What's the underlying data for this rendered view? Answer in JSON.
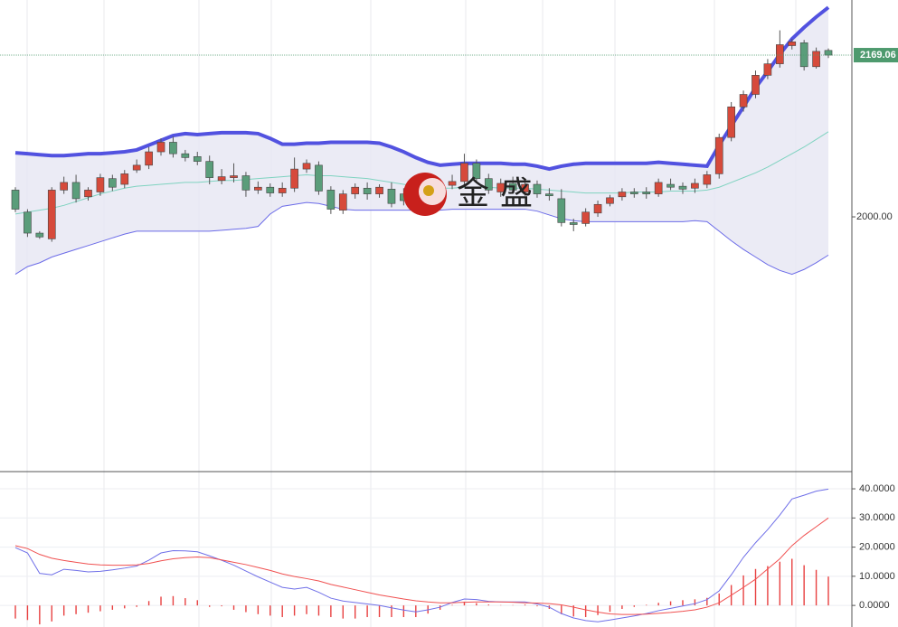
{
  "chart_data": [
    {
      "type": "candlestick",
      "up_color": "#d64a3b",
      "down_color": "#5a9d7a",
      "open": [
        2028,
        2005,
        1983,
        1977,
        2028,
        2036,
        2021,
        2026,
        2040,
        2034,
        2049,
        2054,
        2068,
        2078,
        2066,
        2063,
        2058,
        2038,
        2041,
        2043,
        2028,
        2031,
        2025,
        2030,
        2050,
        2054,
        2028,
        2007,
        2024,
        2030,
        2024,
        2029,
        2024,
        2018,
        2031,
        2027,
        2033,
        2037,
        2056,
        2040,
        2026,
        2035,
        2026,
        2034,
        2024,
        2019,
        1994,
        1993,
        2004,
        2014,
        2021,
        2026,
        2026,
        2024,
        2034,
        2032,
        2030,
        2034,
        2045,
        2083,
        2115,
        2128,
        2148,
        2160,
        2179,
        2182,
        2157,
        2174
      ],
      "high": [
        2031,
        2008,
        1985,
        2031,
        2042,
        2044,
        2031,
        2045,
        2044,
        2049,
        2060,
        2073,
        2082,
        2084,
        2070,
        2068,
        2064,
        2050,
        2056,
        2047,
        2037,
        2035,
        2036,
        2062,
        2060,
        2058,
        2032,
        2028,
        2035,
        2036,
        2034,
        2036,
        2030,
        2035,
        2036,
        2040,
        2044,
        2066,
        2060,
        2045,
        2040,
        2042,
        2038,
        2038,
        2030,
        2029,
        1998,
        2009,
        2017,
        2023,
        2030,
        2030,
        2031,
        2040,
        2040,
        2036,
        2040,
        2048,
        2087,
        2120,
        2132,
        2153,
        2165,
        2195,
        2186,
        2185,
        2177,
        2176
      ],
      "low": [
        2005,
        1979,
        1977,
        1974,
        2024,
        2015,
        2017,
        2022,
        2027,
        2030,
        2046,
        2050,
        2064,
        2062,
        2058,
        2054,
        2034,
        2034,
        2036,
        2021,
        2024,
        2021,
        2021,
        2026,
        2046,
        2023,
        2003,
        2003,
        2019,
        2018,
        2020,
        2010,
        2012,
        2014,
        2022,
        2023,
        2029,
        2033,
        2035,
        2024,
        2021,
        2024,
        2022,
        2020,
        2017,
        1990,
        1985,
        1990,
        2000,
        2011,
        2017,
        2020,
        2019,
        2021,
        2028,
        2024,
        2025,
        2030,
        2040,
        2079,
        2110,
        2124,
        2144,
        2156,
        2175,
        2153,
        2155,
        2166
      ],
      "close": [
        2008,
        1983,
        1979,
        2028,
        2036,
        2019,
        2028,
        2041,
        2031,
        2045,
        2054,
        2068,
        2078,
        2066,
        2062,
        2058,
        2041,
        2042,
        2043,
        2028,
        2031,
        2025,
        2030,
        2050,
        2056,
        2027,
        2008,
        2024,
        2031,
        2024,
        2031,
        2014,
        2017,
        2031,
        2027,
        2033,
        2037,
        2056,
        2040,
        2028,
        2035,
        2028,
        2034,
        2024,
        2022,
        1994,
        1992,
        2005,
        2013,
        2020,
        2026,
        2024,
        2024,
        2036,
        2031,
        2029,
        2035,
        2044,
        2083,
        2115,
        2128,
        2148,
        2160,
        2180,
        2183,
        2157,
        2173,
        2169.06
      ],
      "series": [
        {
          "color": "#5252e0",
          "values": [
            2067,
            2066,
            2065,
            2064,
            2064,
            2065,
            2066,
            2066,
            2067,
            2068,
            2070,
            2075,
            2080,
            2085,
            2087,
            2086,
            2087,
            2088,
            2088,
            2088,
            2087,
            2082,
            2076,
            2076,
            2077,
            2077,
            2078,
            2078,
            2078,
            2078,
            2077,
            2073,
            2068,
            2062,
            2057,
            2054,
            2055,
            2056,
            2056,
            2056,
            2056,
            2055,
            2055,
            2053,
            2050,
            2053,
            2055,
            2056,
            2056,
            2056,
            2056,
            2056,
            2056,
            2057,
            2056,
            2055,
            2054,
            2053,
            2075,
            2095,
            2115,
            2135,
            2152,
            2170,
            2186,
            2198,
            2209,
            2219
          ]
        },
        {
          "color": "#7fd3c0",
          "values": [
            2003,
            2005,
            2007,
            2009,
            2012,
            2016,
            2020,
            2024,
            2027,
            2030,
            2032,
            2033,
            2034,
            2035,
            2036,
            2036,
            2037,
            2038,
            2038,
            2039,
            2040,
            2041,
            2042,
            2043,
            2044,
            2043,
            2043,
            2042,
            2041,
            2040,
            2038,
            2036,
            2034,
            2032,
            2031,
            2030,
            2030,
            2031,
            2031,
            2031,
            2030,
            2030,
            2030,
            2029,
            2028,
            2027,
            2026,
            2025,
            2025,
            2025,
            2025,
            2026,
            2026,
            2026,
            2027,
            2027,
            2027,
            2028,
            2031,
            2036,
            2041,
            2046,
            2052,
            2059,
            2066,
            2073,
            2081,
            2089
          ]
        },
        {
          "color": "#6b6be8",
          "values": [
            1940,
            1948,
            1952,
            1958,
            1962,
            1966,
            1970,
            1974,
            1978,
            1982,
            1985,
            1985,
            1985,
            1985,
            1985,
            1985,
            1985,
            1986,
            1987,
            1988,
            1990,
            2003,
            2011,
            2013,
            2015,
            2014,
            2011,
            2008,
            2007,
            2007,
            2007,
            2007,
            2007,
            2007,
            2007,
            2007,
            2008,
            2008,
            2008,
            2008,
            2008,
            2008,
            2008,
            2006,
            2002,
            1998,
            1996,
            1995,
            1995,
            1995,
            1995,
            1995,
            1995,
            1995,
            1995,
            1995,
            1996,
            1995,
            1985,
            1975,
            1966,
            1958,
            1950,
            1944,
            1940,
            1945,
            1952,
            1960
          ]
        }
      ],
      "band_fill": "#e6e6f2",
      "ylim": [
        1733.7,
        2226.7
      ],
      "yticks": [
        {
          "value": 2000,
          "label": "2000.00"
        }
      ],
      "last_price": 2169.06,
      "last_price_color": "#4e9a6e",
      "watermark": "金盛"
    },
    {
      "type": "macd",
      "series": [
        {
          "color": "#6f6fe8",
          "values": [
            19.8,
            18.0,
            11.0,
            10.5,
            12.4,
            12.0,
            11.5,
            11.7,
            12.2,
            12.8,
            13.5,
            15.5,
            18.0,
            18.8,
            18.7,
            18.4,
            17.0,
            15.5,
            13.8,
            11.8,
            9.8,
            8.0,
            6.2,
            5.6,
            6.2,
            4.5,
            2.5,
            1.5,
            1.0,
            0.5,
            0.0,
            -0.8,
            -1.6,
            -2.2,
            -1.5,
            -0.6,
            1.0,
            2.2,
            2.0,
            1.4,
            1.2,
            1.2,
            1.2,
            0.5,
            -0.6,
            -2.8,
            -4.3,
            -5.2,
            -5.6,
            -5.0,
            -4.3,
            -3.6,
            -2.8,
            -1.8,
            -1.0,
            -0.2,
            0.6,
            2.0,
            5.0,
            10.5,
            16.5,
            21.5,
            26.0,
            31.0,
            36.5,
            37.8,
            39.2,
            39.9
          ]
        },
        {
          "color": "#f05050",
          "values": [
            20.5,
            19.5,
            17.5,
            16.2,
            15.4,
            14.8,
            14.2,
            13.9,
            13.8,
            13.8,
            13.9,
            14.4,
            15.3,
            16.0,
            16.4,
            16.6,
            16.4,
            15.6,
            14.8,
            14.0,
            13.0,
            12.0,
            10.8,
            9.9,
            9.2,
            8.4,
            7.2,
            6.3,
            5.4,
            4.5,
            3.6,
            2.9,
            2.2,
            1.6,
            1.2,
            0.9,
            0.9,
            1.1,
            1.2,
            1.2,
            1.2,
            1.1,
            0.9,
            0.8,
            0.6,
            0.2,
            -0.6,
            -1.5,
            -2.3,
            -2.9,
            -3.1,
            -3.1,
            -3.0,
            -2.7,
            -2.4,
            -2.0,
            -1.5,
            -0.6,
            0.9,
            3.5,
            6.2,
            9.0,
            12.5,
            16.0,
            20.5,
            24.0,
            27.0,
            30.0
          ]
        }
      ],
      "histogram": {
        "color": "#e84040",
        "values": [
          -4.5,
          -5.0,
          -6.5,
          -5.5,
          -3.5,
          -3.0,
          -2.5,
          -2.0,
          -1.5,
          -1.0,
          -0.5,
          1.5,
          3.0,
          3.2,
          2.5,
          1.8,
          -0.5,
          -0.3,
          -1.5,
          -2.3,
          -3.0,
          -3.5,
          -4.0,
          -3.5,
          -3.0,
          -3.5,
          -4.0,
          -4.5,
          -4.5,
          -4.0,
          -4.0,
          -4.0,
          -4.0,
          -4.0,
          -2.8,
          -1.5,
          0.2,
          1.3,
          0.8,
          0.3,
          0.1,
          0.1,
          0.3,
          -0.3,
          -1.2,
          -3.0,
          -3.8,
          -4.0,
          -3.3,
          -2.2,
          -1.2,
          -0.5,
          0.2,
          0.9,
          1.4,
          1.8,
          2.1,
          2.6,
          4.1,
          7.0,
          10.3,
          12.5,
          13.5,
          15.0,
          16.0,
          13.8,
          12.2,
          9.9
        ]
      },
      "ylim": [
        -7.4,
        45.9
      ],
      "yticks": [
        {
          "value": 40,
          "label": "40.0000"
        },
        {
          "value": 30,
          "label": "30.0000"
        },
        {
          "value": 20,
          "label": "20.0000"
        },
        {
          "value": 10,
          "label": "10.0000"
        },
        {
          "value": 0,
          "label": "0.0000"
        }
      ],
      "grid": true
    }
  ]
}
